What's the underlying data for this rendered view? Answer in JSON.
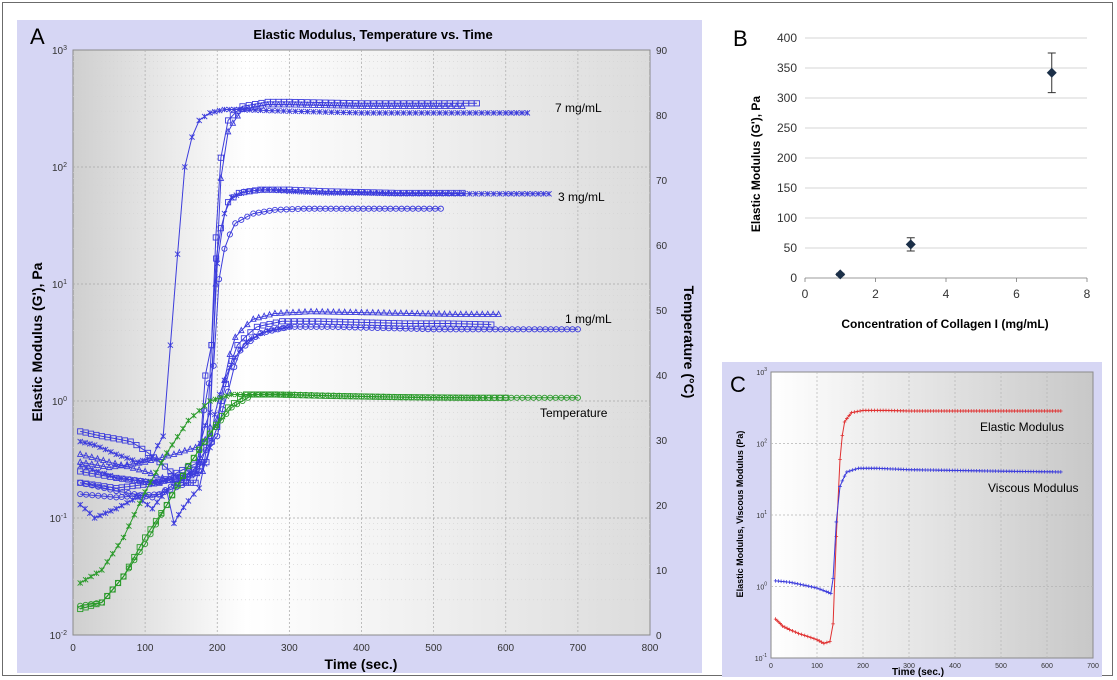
{
  "chart_data": [
    {
      "panel": "A",
      "type": "line",
      "title": "Elastic Modulus, Temperature vs. Time",
      "xlabel": "Time (sec.)",
      "ylabel": "Elastic Modulus (G'), Pa",
      "y2label": "Temperature (°C)",
      "xlim": [
        0,
        800
      ],
      "ylim": [
        0.01,
        1000
      ],
      "y2lim": [
        0,
        90
      ],
      "yscale": "log",
      "grid": true,
      "x_ticks": [
        "0",
        "100",
        "200",
        "300",
        "400",
        "500",
        "600",
        "700",
        "800"
      ],
      "y_ticks": [
        "10-2",
        "10-1",
        "100",
        "101",
        "102",
        "103"
      ],
      "y2_ticks": [
        "0",
        "10",
        "20",
        "30",
        "40",
        "50",
        "60",
        "70",
        "80",
        "90"
      ],
      "annotations": [
        "7 mg/mL",
        "3 mg/mL",
        "1 mg/mL",
        "Temperature"
      ],
      "colors": {
        "modulus": "#3c3cdc",
        "temperature": "#2a9a2a",
        "plot_bg": "#e6e6e6",
        "frame_bg": "#d9d9f5"
      },
      "series": [
        {
          "group": "7 mg/mL",
          "axis": "left",
          "marker": "star",
          "x": [
            10,
            30,
            60,
            90,
            110,
            125,
            135,
            145,
            155,
            165,
            175,
            190,
            210,
            230,
            260,
            300,
            350,
            400,
            450,
            500,
            550,
            600,
            630
          ],
          "y": [
            0.45,
            0.42,
            0.35,
            0.3,
            0.33,
            0.5,
            3,
            18,
            100,
            180,
            250,
            290,
            310,
            310,
            305,
            300,
            295,
            290,
            290,
            290,
            290,
            290,
            290
          ]
        },
        {
          "group": "7 mg/mL",
          "axis": "left",
          "marker": "square",
          "x": [
            10,
            40,
            80,
            120,
            150,
            170,
            185,
            192,
            198,
            205,
            215,
            235,
            270,
            300,
            350,
            400,
            450,
            500,
            560
          ],
          "y": [
            0.55,
            0.5,
            0.45,
            0.3,
            0.2,
            0.2,
            0.4,
            3,
            25,
            120,
            250,
            330,
            360,
            360,
            355,
            350,
            350,
            350,
            350
          ]
        },
        {
          "group": "7 mg/mL",
          "axis": "left",
          "marker": "triangle",
          "x": [
            10,
            50,
            100,
            140,
            180,
            190,
            198,
            205,
            215,
            235,
            270,
            300,
            350,
            400,
            450,
            500,
            540
          ],
          "y": [
            0.35,
            0.3,
            0.25,
            0.2,
            0.25,
            0.6,
            10,
            80,
            200,
            310,
            340,
            340,
            335,
            330,
            330,
            330,
            330
          ]
        },
        {
          "group": "3 mg/mL",
          "axis": "left",
          "marker": "star",
          "x": [
            10,
            60,
            120,
            170,
            190,
            200,
            210,
            220,
            240,
            270,
            300,
            350,
            400,
            450,
            500,
            550,
            600,
            660
          ],
          "y": [
            0.28,
            0.22,
            0.2,
            0.25,
            0.8,
            15,
            40,
            55,
            62,
            64,
            62,
            60,
            60,
            59,
            59,
            59,
            59,
            59
          ]
        },
        {
          "group": "3 mg/mL",
          "axis": "left",
          "marker": "square",
          "x": [
            10,
            60,
            120,
            175,
            192,
            205,
            215,
            230,
            260,
            300,
            350,
            400,
            450,
            500,
            540
          ],
          "y": [
            0.2,
            0.18,
            0.2,
            0.3,
            3,
            30,
            50,
            60,
            64,
            64,
            62,
            61,
            60,
            60,
            60
          ]
        },
        {
          "group": "3 mg/mL",
          "axis": "left",
          "marker": "circle",
          "x": [
            10,
            60,
            120,
            175,
            195,
            210,
            225,
            250,
            280,
            320,
            380,
            440,
            510
          ],
          "y": [
            0.16,
            0.15,
            0.16,
            0.25,
            2,
            20,
            33,
            40,
            43,
            44,
            44,
            44,
            44
          ]
        },
        {
          "group": "1 mg/mL",
          "axis": "left",
          "marker": "triangle",
          "x": [
            10,
            50,
            100,
            140,
            170,
            190,
            200,
            210,
            225,
            250,
            280,
            330,
            400,
            470,
            530,
            590
          ],
          "y": [
            0.3,
            0.27,
            0.3,
            0.35,
            0.4,
            0.5,
            0.7,
            1.5,
            3.5,
            5.0,
            5.6,
            5.8,
            5.7,
            5.6,
            5.5,
            5.5
          ]
        },
        {
          "group": "1 mg/mL",
          "axis": "left",
          "marker": "square",
          "x": [
            10,
            60,
            110,
            150,
            185,
            200,
            212,
            228,
            255,
            290,
            340,
            400,
            460,
            520,
            580
          ],
          "y": [
            0.25,
            0.22,
            0.2,
            0.22,
            0.3,
            0.6,
            1.4,
            3.0,
            4.3,
            4.8,
            4.8,
            4.7,
            4.6,
            4.6,
            4.5
          ]
        },
        {
          "group": "1 mg/mL",
          "axis": "left",
          "marker": "circle",
          "x": [
            10,
            60,
            110,
            160,
            200,
            215,
            232,
            260,
            300,
            360,
            430,
            500,
            570,
            640,
            700
          ],
          "y": [
            0.2,
            0.17,
            0.15,
            0.2,
            0.5,
            1.2,
            2.7,
            3.8,
            4.3,
            4.3,
            4.2,
            4.1,
            4.1,
            4.1,
            4.1
          ]
        },
        {
          "group": "1 mg/mL",
          "axis": "left",
          "marker": "star",
          "x": [
            10,
            30,
            60,
            90,
            110,
            130,
            140,
            160,
            175,
            190,
            210,
            240,
            270,
            300
          ],
          "y": [
            0.13,
            0.1,
            0.12,
            0.15,
            0.12,
            0.17,
            0.09,
            0.14,
            0.18,
            0.4,
            1.5,
            3.2,
            4.0,
            4.3
          ]
        },
        {
          "group": "Temperature",
          "axis": "right",
          "marker": "star",
          "x": [
            10,
            40,
            70,
            100,
            130,
            160,
            190,
            220,
            260,
            300
          ],
          "y": [
            8,
            10,
            15,
            22,
            28,
            33,
            36,
            37,
            37,
            37
          ]
        },
        {
          "group": "Temperature",
          "axis": "right",
          "marker": "square",
          "x": [
            10,
            40,
            70,
            100,
            130,
            160,
            190,
            215,
            240,
            280,
            350,
            450,
            550,
            600
          ],
          "y": [
            4,
            5,
            9,
            15,
            20,
            26,
            31,
            35,
            37,
            37,
            36.8,
            36.6,
            36.5,
            36.5
          ]
        },
        {
          "group": "Temperature",
          "axis": "right",
          "marker": "circle",
          "x": [
            10,
            40,
            70,
            100,
            130,
            160,
            190,
            220,
            250,
            300,
            400,
            500,
            600,
            700
          ],
          "y": [
            4.5,
            5,
            9,
            14,
            20,
            26,
            31,
            35,
            37,
            37,
            36.7,
            36.5,
            36.5,
            36.5
          ]
        }
      ]
    },
    {
      "panel": "B",
      "type": "scatter",
      "title": "",
      "xlabel": "Concentration of Collagen I (mg/mL)",
      "ylabel": "Elastic Modulus (G'), Pa",
      "xlim": [
        0,
        8
      ],
      "ylim": [
        0,
        400
      ],
      "grid": true,
      "x_ticks": [
        "0",
        "2",
        "4",
        "6",
        "8"
      ],
      "y_ticks": [
        "0",
        "50",
        "100",
        "150",
        "200",
        "250",
        "300",
        "350",
        "400"
      ],
      "x": [
        1,
        3,
        7
      ],
      "y": [
        6,
        56,
        342
      ],
      "error": [
        2,
        11,
        33
      ],
      "colors": {
        "marker": "#1b2f48"
      }
    },
    {
      "panel": "C",
      "type": "line",
      "title": "",
      "xlabel": "Time (sec.)",
      "ylabel": "Elastic Modulus, Viscous Modulus (Pa)",
      "xlim": [
        0,
        700
      ],
      "ylim": [
        0.1,
        1000
      ],
      "yscale": "log",
      "grid": true,
      "x_ticks": [
        "0",
        "100",
        "200",
        "300",
        "400",
        "500",
        "600",
        "700"
      ],
      "y_ticks": [
        "10-1",
        "100",
        "101",
        "102",
        "103"
      ],
      "series": [
        {
          "name": "Elastic Modulus",
          "color": "#e03030",
          "x": [
            10,
            25,
            40,
            60,
            80,
            100,
            115,
            128,
            135,
            142,
            150,
            160,
            175,
            200,
            250,
            300,
            400,
            500,
            630
          ],
          "y": [
            0.35,
            0.28,
            0.25,
            0.22,
            0.2,
            0.18,
            0.16,
            0.17,
            0.3,
            5,
            60,
            200,
            270,
            290,
            290,
            285,
            285,
            285,
            285
          ]
        },
        {
          "name": "Viscous Modulus",
          "color": "#3c3cdc",
          "x": [
            10,
            40,
            70,
            100,
            120,
            130,
            135,
            142,
            150,
            165,
            190,
            230,
            300,
            400,
            500,
            630
          ],
          "y": [
            1.2,
            1.15,
            1.05,
            0.95,
            0.85,
            0.8,
            1.3,
            8,
            25,
            40,
            45,
            45,
            43,
            42,
            41,
            40
          ]
        }
      ]
    }
  ],
  "labels": {
    "a": "A",
    "b": "B",
    "c": "C"
  }
}
